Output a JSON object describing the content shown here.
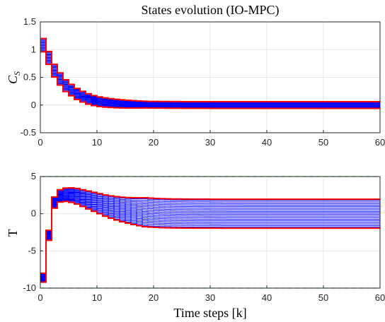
{
  "colors": {
    "trajectory": "#0000ff",
    "bound": "#ff0000",
    "constraint": "#00cc00",
    "grid": "#e6e6e6",
    "axis": "#262626"
  },
  "figure": {
    "title": "States evolution (IO-MPC)",
    "xlabel": "Time steps [k]"
  },
  "chart_data": [
    {
      "type": "line",
      "step": true,
      "ylabel_main": "C",
      "ylabel_sub": "S",
      "xlim": [
        0,
        60
      ],
      "ylim": [
        -0.5,
        1.5
      ],
      "xticks": [
        "0",
        "10",
        "20",
        "30",
        "40",
        "50",
        "60"
      ],
      "yticks": [
        "1.5",
        "1",
        "0.5",
        "0",
        "-0.5"
      ],
      "grid": true,
      "center_curve": [
        1.08,
        0.85,
        0.62,
        0.47,
        0.35,
        0.27,
        0.2,
        0.15,
        0.11,
        0.08,
        0.06,
        0.045,
        0.035,
        0.027,
        0.021,
        0.016,
        0.013,
        0.01,
        0.008,
        0.006,
        0.005,
        0.004,
        0.003,
        0.002,
        0.002,
        0.001,
        0.001,
        0.001,
        0.001,
        0.001,
        0,
        0,
        0,
        0,
        0,
        0,
        0,
        0,
        0,
        0,
        0,
        0,
        0,
        0,
        0,
        0,
        0,
        0,
        0,
        0,
        0,
        0,
        0,
        0,
        0,
        0,
        0,
        0,
        0,
        0,
        0
      ],
      "band_start": 0.12,
      "band_end": 0.06,
      "series_count": 14,
      "constraints": []
    },
    {
      "type": "line",
      "step": true,
      "ylabel_main": "T",
      "ylabel_sub": "",
      "xlim": [
        0,
        60
      ],
      "ylim": [
        -10,
        5
      ],
      "xticks": [
        "0",
        "10",
        "20",
        "30",
        "40",
        "50",
        "60"
      ],
      "yticks": [
        "5",
        "0",
        "-5",
        "-10"
      ],
      "grid": true,
      "center_curve": [
        -8.6,
        -2.9,
        1.5,
        2.4,
        2.55,
        2.5,
        2.35,
        2.1,
        1.85,
        1.6,
        1.35,
        1.1,
        0.9,
        0.72,
        0.57,
        0.45,
        0.35,
        0.27,
        0.2,
        0.15,
        0.11,
        0.08,
        0.06,
        0.04,
        0.03,
        0.02,
        0.015,
        0.01,
        0.008,
        0.006,
        0.004,
        0.003,
        0.002,
        0.001,
        0.001,
        0.001,
        0,
        0,
        0,
        0,
        0,
        0,
        0,
        0,
        0,
        0,
        0,
        0,
        0,
        0,
        0,
        0,
        0,
        0,
        0,
        0,
        0,
        0,
        0,
        0,
        0
      ],
      "band_start": 0.6,
      "band_end": 1.95,
      "series_count": 18,
      "constraints": [
        5,
        -10
      ]
    }
  ]
}
